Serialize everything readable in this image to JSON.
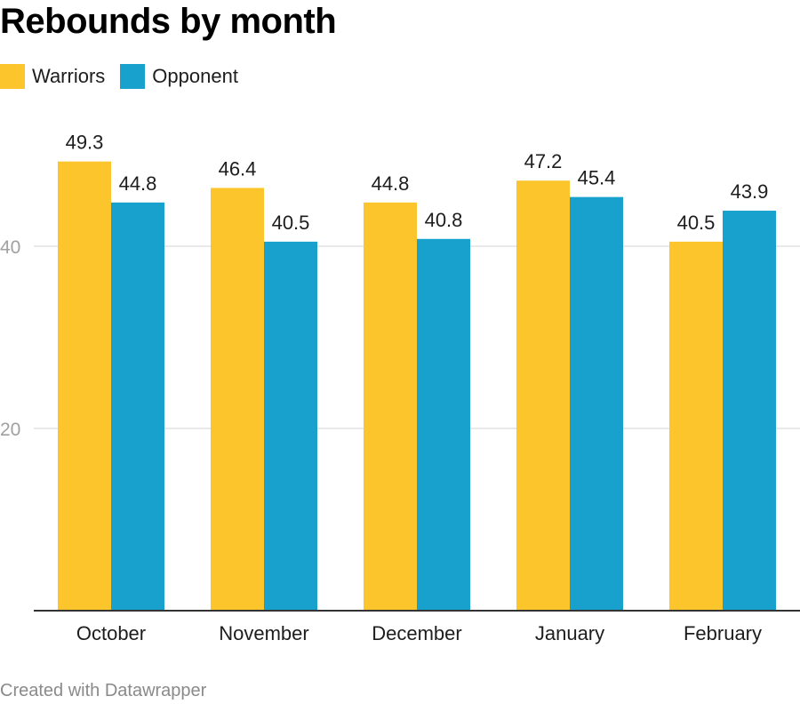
{
  "chart_data": {
    "type": "bar",
    "title": "Rebounds by month",
    "categories": [
      "October",
      "November",
      "December",
      "January",
      "February"
    ],
    "series": [
      {
        "name": "Warriors",
        "color": "#fdc52c",
        "values": [
          49.3,
          46.4,
          44.8,
          47.2,
          40.5
        ]
      },
      {
        "name": "Opponent",
        "color": "#18a1cd",
        "values": [
          44.8,
          40.5,
          40.8,
          45.4,
          43.9
        ]
      }
    ],
    "yticks": [
      20,
      40
    ],
    "ylim": [
      0,
      50
    ],
    "xlabel": "",
    "ylabel": "",
    "grid": true,
    "legend": "top-left",
    "data_labels": true
  },
  "footer": "Created with Datawrapper"
}
